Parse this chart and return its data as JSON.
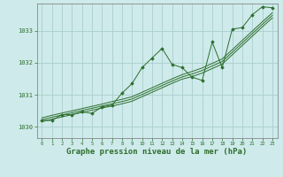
{
  "background_color": "#ceeaea",
  "grid_color": "#aacece",
  "line_color": "#2d6e2d",
  "marker_color": "#2d6e2d",
  "xlabel": "Graphe pression niveau de la mer (hPa)",
  "xlabel_fontsize": 6.5,
  "ylabel_values": [
    1030,
    1031,
    1032,
    1033
  ],
  "xlim": [
    -0.5,
    23.5
  ],
  "ylim": [
    1029.65,
    1033.85
  ],
  "xticks": [
    0,
    1,
    2,
    3,
    4,
    5,
    6,
    7,
    8,
    9,
    10,
    11,
    12,
    13,
    14,
    15,
    16,
    17,
    18,
    19,
    20,
    21,
    22,
    23
  ],
  "main_series": [
    1030.2,
    1030.2,
    1030.38,
    1030.38,
    1030.47,
    1030.42,
    1030.62,
    1030.68,
    1031.05,
    1031.35,
    1031.85,
    1032.15,
    1032.45,
    1031.95,
    1031.85,
    1031.55,
    1031.45,
    1032.65,
    1031.85,
    1033.05,
    1033.1,
    1033.5,
    1033.75,
    1033.72
  ],
  "trend_line": [
    1030.22,
    1030.3,
    1030.37,
    1030.44,
    1030.51,
    1030.58,
    1030.65,
    1030.72,
    1030.79,
    1030.87,
    1031.01,
    1031.15,
    1031.29,
    1031.43,
    1031.56,
    1031.65,
    1031.76,
    1031.9,
    1032.04,
    1032.33,
    1032.62,
    1032.91,
    1033.2,
    1033.48
  ],
  "upper_band": [
    1030.28,
    1030.36,
    1030.43,
    1030.5,
    1030.57,
    1030.64,
    1030.71,
    1030.79,
    1030.86,
    1030.94,
    1031.08,
    1031.22,
    1031.36,
    1031.5,
    1031.63,
    1031.73,
    1031.84,
    1031.98,
    1032.12,
    1032.41,
    1032.7,
    1032.99,
    1033.28,
    1033.56
  ],
  "lower_band": [
    1030.16,
    1030.24,
    1030.31,
    1030.38,
    1030.45,
    1030.52,
    1030.59,
    1030.65,
    1030.72,
    1030.8,
    1030.94,
    1031.08,
    1031.22,
    1031.36,
    1031.49,
    1031.57,
    1031.68,
    1031.82,
    1031.96,
    1032.25,
    1032.54,
    1032.83,
    1033.12,
    1033.4
  ]
}
